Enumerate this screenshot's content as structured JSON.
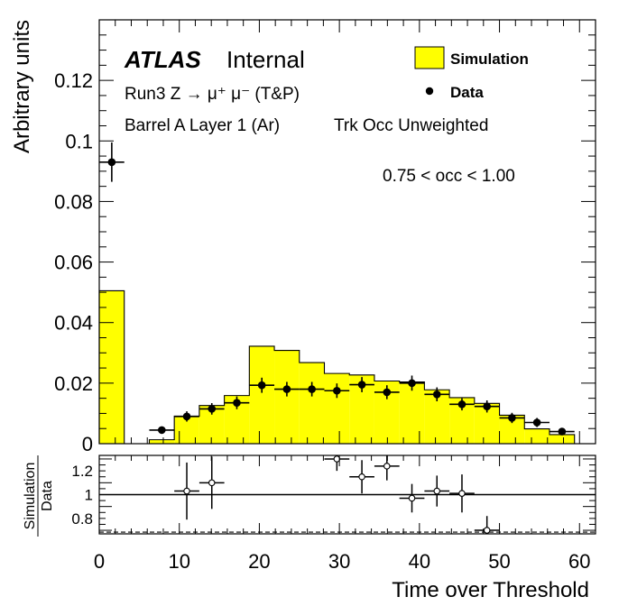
{
  "chart_data": [
    {
      "type": "histogram",
      "ylabel": "Arbitrary units",
      "xlim": [
        0,
        62
      ],
      "ylim": [
        0,
        0.14
      ],
      "y_ticks": [
        "0",
        "0.02",
        "0.04",
        "0.06",
        "0.08",
        "0.1",
        "0.12"
      ],
      "annotations": {
        "atlas": "ATLAS",
        "internal": "Internal",
        "process": "Run3 Z → μ⁺ μ⁻ (T&P)",
        "region": "Barrel A Layer 1 (Ar)",
        "weighting": "Trk Occ Unweighted",
        "occupancy": "0.75 < occ < 1.00"
      },
      "legend": {
        "position": "top-right",
        "simulation": "Simulation",
        "data": "Data"
      },
      "bin_edges": [
        0,
        3.125,
        6.25,
        9.375,
        12.5,
        15.625,
        18.75,
        21.875,
        25,
        28.125,
        31.25,
        34.375,
        37.5,
        40.625,
        43.75,
        46.875,
        50,
        53.125,
        56.25,
        59.375
      ],
      "series": [
        {
          "name": "Simulation",
          "color": "#ffff00",
          "values": [
            0.0505,
            0,
            0.0013,
            0.0091,
            0.0126,
            0.0159,
            0.0322,
            0.0308,
            0.0268,
            0.0232,
            0.0227,
            0.0207,
            0.0204,
            0.0178,
            0.0152,
            0.0133,
            0.0094,
            0.0049,
            0.003
          ]
        },
        {
          "name": "Data",
          "color": "#000000",
          "x": [
            1.5625,
            7.8125,
            10.9375,
            14.0625,
            17.1875,
            20.3125,
            23.4375,
            26.5625,
            29.6875,
            32.8125,
            35.9375,
            39.0625,
            42.1875,
            45.3125,
            48.4375,
            51.5625,
            54.6875,
            57.8125
          ],
          "values": [
            0.093,
            0.0045,
            0.009,
            0.0115,
            0.0135,
            0.0193,
            0.018,
            0.018,
            0.0175,
            0.0195,
            0.017,
            0.02,
            0.0163,
            0.013,
            0.0123,
            0.0085,
            0.007,
            0.004
          ],
          "errors": [
            0.0065,
            0.0011,
            0.0017,
            0.0019,
            0.0021,
            0.0025,
            0.0024,
            0.0024,
            0.0024,
            0.0025,
            0.0023,
            0.0025,
            0.0023,
            0.002,
            0.002,
            0.0017,
            0.0015,
            0.0011
          ]
        }
      ]
    },
    {
      "type": "ratio",
      "ylabel": "Simulation / Data",
      "ylabel_numerator": "Simulation",
      "ylabel_denominator": "Data",
      "xlabel": "Time over Threshold",
      "xlim": [
        0,
        62
      ],
      "ylim": [
        0.67,
        1.33
      ],
      "x_ticks": [
        "0",
        "10",
        "20",
        "30",
        "40",
        "50",
        "60"
      ],
      "y_ticks": [
        "0.8",
        "1",
        "1.2"
      ],
      "reference_line": 1.0,
      "dashed_line": 0.7,
      "x": [
        10.9375,
        14.0625,
        29.6875,
        32.8125,
        35.9375,
        39.0625,
        42.1875,
        45.3125,
        48.4375
      ],
      "values": [
        1.03,
        1.1,
        1.3,
        1.15,
        1.24,
        0.97,
        1.03,
        1.01,
        0.7
      ],
      "errors": [
        0.24,
        0.22,
        0.1,
        0.14,
        0.12,
        0.12,
        0.13,
        0.16,
        0.12
      ]
    }
  ]
}
